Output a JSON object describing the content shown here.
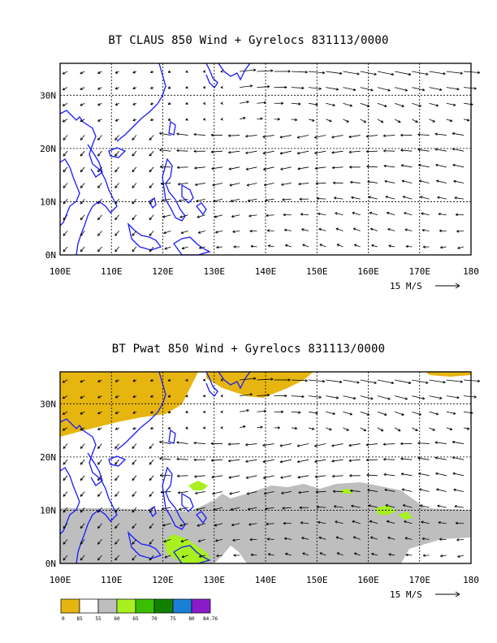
{
  "panels": [
    {
      "title": "BT CLAUS 850 Wind + Gyrelocs 831113/0000",
      "lat_labels": [
        "0N",
        "10N",
        "20N",
        "30N"
      ],
      "lon_labels": [
        "100E",
        "110E",
        "120E",
        "130E",
        "140E",
        "150E",
        "160E",
        "170E",
        "180"
      ],
      "scale_label": "15 M/S"
    },
    {
      "title": "BT Pwat 850 Wind + Gyrelocs 831113/0000",
      "lat_labels": [
        "0N",
        "10N",
        "20N",
        "30N"
      ],
      "lon_labels": [
        "100E",
        "110E",
        "120E",
        "130E",
        "140E",
        "150E",
        "160E",
        "170E",
        "180"
      ],
      "scale_label": "15 M/S"
    }
  ],
  "legend": {
    "colors": [
      "#e6b50f",
      "#ffffff",
      "#bebebe",
      "#a8f020",
      "#3cbe00",
      "#118000",
      "#1a7fd6",
      "#8a1ccc"
    ],
    "labels": [
      "0",
      "85",
      "55",
      "60",
      "65",
      "70",
      "75",
      "80",
      "84.76"
    ]
  }
}
